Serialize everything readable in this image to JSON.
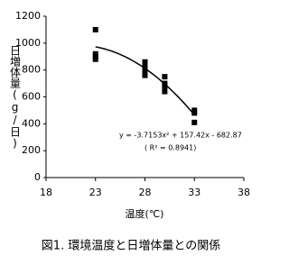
{
  "chart_data": {
    "type": "scatter",
    "caption": "図1. 環境温度と日増体量との関係",
    "x_label": "温度(℃)",
    "y_label": "日増体量(g/日)",
    "series": [
      {
        "color": "#000000",
        "x": [
          23,
          23,
          23,
          23,
          28,
          28,
          28,
          28,
          28,
          30,
          30,
          30,
          30,
          33,
          33,
          33
        ],
        "values": [
          1100,
          920,
          900,
          880,
          860,
          840,
          800,
          780,
          760,
          750,
          700,
          680,
          640,
          500,
          480,
          410
        ]
      }
    ],
    "trendline": {
      "coefficients": [
        -3.7153,
        157.42,
        -682.87
      ],
      "equation": "y = -3.7153x² + 157.42x - 682.87",
      "r2": "( R² = 0.8941)"
    },
    "xlim": [
      18,
      38
    ],
    "xticks": [
      18,
      23,
      28,
      33,
      38
    ],
    "ylim": [
      0,
      1200
    ],
    "yticks": [
      0,
      200,
      400,
      600,
      800,
      1000,
      1200
    ],
    "grid": false
  }
}
